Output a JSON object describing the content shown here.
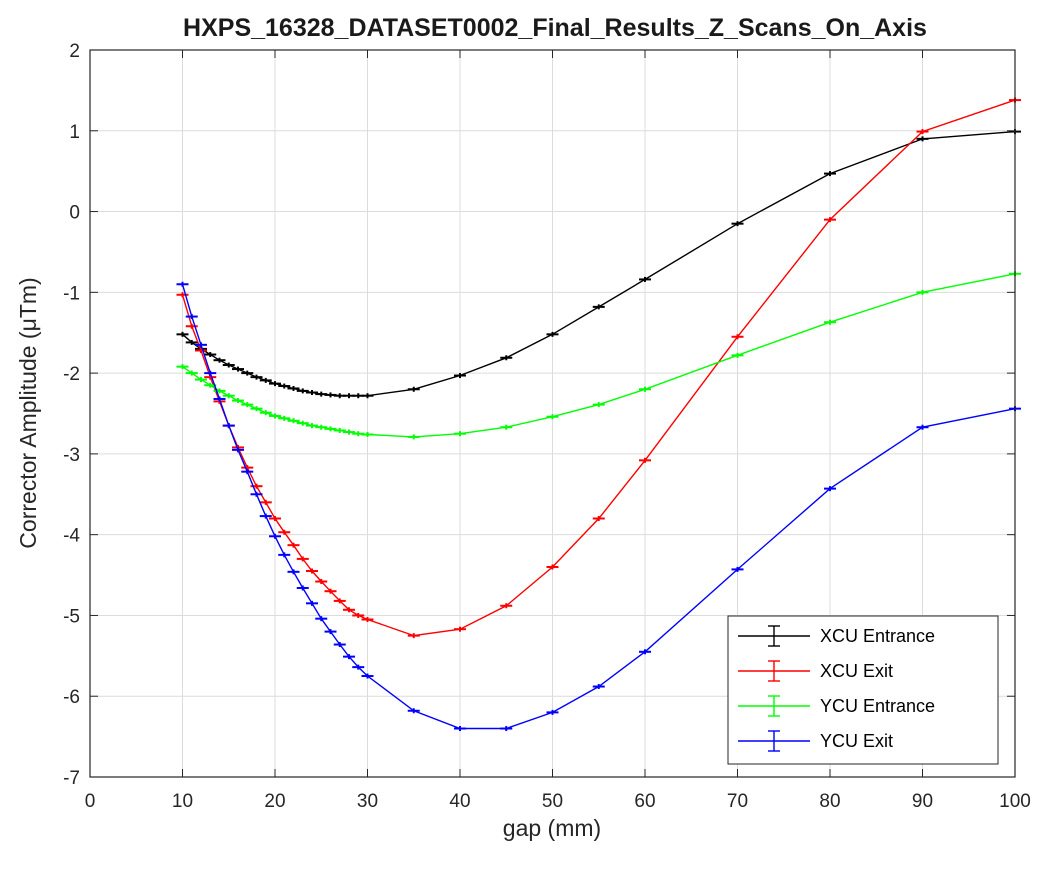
{
  "chart_data": {
    "type": "line",
    "title": "HXPS_16328_DATASET0002_Final_Results_Z_Scans_On_Axis",
    "xlabel": "gap (mm)",
    "ylabel": "Corrector Amplitude (μTm)",
    "xlim": [
      0,
      100
    ],
    "ylim": [
      -7,
      2
    ],
    "xticks": [
      0,
      10,
      20,
      30,
      40,
      50,
      60,
      70,
      80,
      90,
      100
    ],
    "yticks": [
      2,
      1,
      0,
      -1,
      -2,
      -3,
      -4,
      -5,
      -6,
      -7
    ],
    "grid": true,
    "legend_position": "bottom-right",
    "x": [
      10,
      11,
      12,
      13,
      14,
      15,
      16,
      17,
      18,
      19,
      20,
      21,
      22,
      23,
      24,
      25,
      26,
      27,
      28,
      29,
      30,
      35,
      40,
      45,
      50,
      55,
      60,
      70,
      80,
      90,
      100
    ],
    "series": [
      {
        "name": "XCU Entrance",
        "color": "#000000",
        "values": [
          -1.52,
          -1.62,
          -1.7,
          -1.77,
          -1.84,
          -1.9,
          -1.95,
          -2.0,
          -2.05,
          -2.09,
          -2.13,
          -2.16,
          -2.19,
          -2.22,
          -2.24,
          -2.26,
          -2.27,
          -2.28,
          -2.28,
          -2.28,
          -2.28,
          -2.2,
          -2.03,
          -1.81,
          -1.52,
          -1.18,
          -0.84,
          -0.15,
          0.47,
          0.9,
          0.99
        ]
      },
      {
        "name": "XCU Exit",
        "color": "#ff0000",
        "values": [
          -1.03,
          -1.42,
          -1.72,
          -2.05,
          -2.35,
          -2.65,
          -2.92,
          -3.17,
          -3.4,
          -3.6,
          -3.8,
          -3.97,
          -4.13,
          -4.3,
          -4.45,
          -4.58,
          -4.7,
          -4.82,
          -4.93,
          -5.0,
          -5.05,
          -5.25,
          -5.17,
          -4.88,
          -4.4,
          -3.8,
          -3.08,
          -1.55,
          -0.1,
          0.99,
          1.38
        ]
      },
      {
        "name": "YCU Entrance",
        "color": "#00ff00",
        "values": [
          -1.92,
          -2.0,
          -2.08,
          -2.15,
          -2.22,
          -2.28,
          -2.34,
          -2.39,
          -2.44,
          -2.49,
          -2.53,
          -2.56,
          -2.59,
          -2.62,
          -2.65,
          -2.67,
          -2.69,
          -2.71,
          -2.73,
          -2.75,
          -2.76,
          -2.79,
          -2.75,
          -2.67,
          -2.54,
          -2.39,
          -2.2,
          -1.78,
          -1.37,
          -1.0,
          -0.77
        ]
      },
      {
        "name": "YCU Exit",
        "color": "#0000ff",
        "values": [
          -0.9,
          -1.3,
          -1.65,
          -2.0,
          -2.32,
          -2.65,
          -2.95,
          -3.22,
          -3.5,
          -3.77,
          -4.02,
          -4.25,
          -4.46,
          -4.66,
          -4.85,
          -5.04,
          -5.2,
          -5.36,
          -5.51,
          -5.64,
          -5.75,
          -6.18,
          -6.4,
          -6.4,
          -6.2,
          -5.88,
          -5.45,
          -4.43,
          -3.43,
          -2.67,
          -2.44
        ]
      }
    ]
  }
}
